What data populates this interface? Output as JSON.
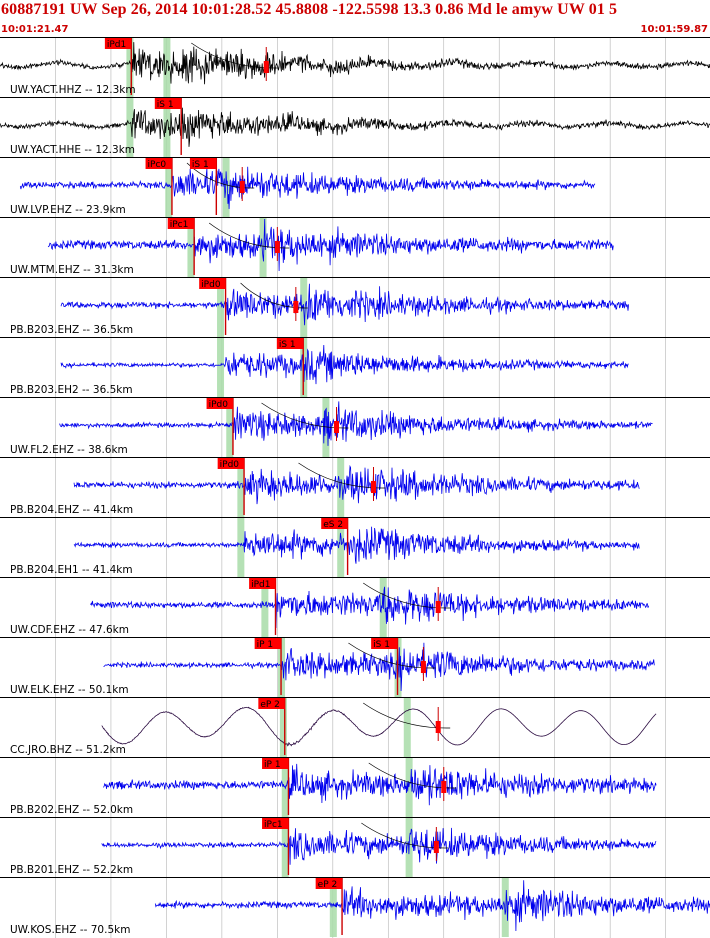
{
  "header": {
    "title": "60887191 UW Sep 26, 2014 10:01:28.52    45.8808 -122.5598 13.3 0.86 Md le amyw UW 01    5",
    "time_start": "10:01:21.47",
    "time_end": "10:01:59.87"
  },
  "colors": {
    "header_text": "#cc0000",
    "trace_velocity": "#0000ee",
    "trace_broadband": "#000000",
    "trace_cc": "#2a0a40",
    "pick_flag": "#ff0000",
    "pick_line": "#cc0000",
    "window_band": "#a8dca8",
    "grid": "#b4b4b4"
  },
  "chart_data": {
    "type": "seismogram",
    "title": "60887191 UW Sep 26, 2014 10:01:28.52    45.8808 -122.5598 13.3 0.86 Md le amyw UW 01    5",
    "time_range": [
      "10:01:21.47",
      "10:01:59.87"
    ],
    "time_range_seconds": [
      0,
      38.4
    ],
    "grid": true,
    "traces": [
      {
        "label": "UW.YACT.HHZ -- 12.3km",
        "color": "broadband",
        "start": 0.0,
        "end": 38.4,
        "p": 7.1,
        "s": 9.8,
        "picks": [
          {
            "label": "iPd1",
            "t": 7.1,
            "type": "P"
          }
        ],
        "windows": [
          7.0,
          9.0
        ],
        "coda": [
          14.4
        ],
        "noise": 0.12,
        "amp": 1.0
      },
      {
        "label": "UW.YACT.HHE -- 12.3km",
        "color": "broadband",
        "start": 0.0,
        "end": 38.4,
        "p": 7.1,
        "s": 9.8,
        "picks": [
          {
            "label": "iS 1",
            "t": 9.8,
            "type": "S"
          }
        ],
        "windows": [
          7.0,
          9.0
        ],
        "coda": [],
        "noise": 0.12,
        "amp": 0.95
      },
      {
        "label": "UW.LVP.EHZ -- 23.9km",
        "color": "velocity",
        "start": 1.1,
        "end": 32.2,
        "p": 9.3,
        "s": 11.7,
        "picks": [
          {
            "label": "iPc0",
            "t": 9.3,
            "type": "P"
          },
          {
            "label": "iS 1",
            "t": 11.7,
            "type": "S"
          }
        ],
        "windows": [
          9.1,
          12.2
        ],
        "coda": [
          13.1
        ],
        "noise": 0.16,
        "amp": 1.0
      },
      {
        "label": "UW.MTM.EHZ -- 31.3km",
        "color": "velocity",
        "start": 2.6,
        "end": 33.2,
        "p": 10.5,
        "s": 14.2,
        "picks": [
          {
            "label": "iPc1",
            "t": 10.5,
            "type": "P"
          }
        ],
        "windows": [
          10.3,
          14.2
        ],
        "coda": [
          15.0
        ],
        "noise": 0.22,
        "amp": 1.0
      },
      {
        "label": "PB.B203.EHZ -- 36.5km",
        "color": "velocity",
        "start": 3.3,
        "end": 34.0,
        "p": 12.2,
        "s": 16.4,
        "picks": [
          {
            "label": "iPd0",
            "t": 12.2,
            "type": "P"
          }
        ],
        "windows": [
          11.9,
          16.4
        ],
        "coda": [
          16.0
        ],
        "noise": 0.16,
        "amp": 1.0
      },
      {
        "label": "PB.B203.EH2 -- 36.5km",
        "color": "velocity",
        "start": 3.3,
        "end": 34.0,
        "p": 12.2,
        "s": 16.4,
        "picks": [
          {
            "label": "iS 1",
            "t": 16.4,
            "type": "S"
          }
        ],
        "windows": [
          11.9,
          16.4
        ],
        "coda": [],
        "noise": 0.12,
        "amp": 0.9
      },
      {
        "label": "UW.FL2.EHZ -- 38.6km",
        "color": "velocity",
        "start": 3.2,
        "end": 35.3,
        "p": 12.6,
        "s": 17.5,
        "picks": [
          {
            "label": "iPd0",
            "t": 12.6,
            "type": "P"
          }
        ],
        "windows": [
          12.4,
          17.6
        ],
        "coda": [
          18.2
        ],
        "noise": 0.12,
        "amp": 1.0
      },
      {
        "label": "PB.B204.EHZ -- 41.4km",
        "color": "velocity",
        "start": 4.0,
        "end": 34.6,
        "p": 13.2,
        "s": 18.8,
        "picks": [
          {
            "label": "iPd0",
            "t": 13.2,
            "type": "P"
          }
        ],
        "windows": [
          13.0,
          18.4
        ],
        "coda": [
          20.2
        ],
        "noise": 0.16,
        "amp": 1.0
      },
      {
        "label": "PB.B204.EH1 -- 41.4km",
        "color": "velocity",
        "start": 4.0,
        "end": 34.6,
        "p": 13.2,
        "s": 18.8,
        "picks": [
          {
            "label": "eS 2",
            "t": 18.8,
            "type": "S"
          }
        ],
        "windows": [
          13.0,
          18.4
        ],
        "coda": [],
        "noise": 0.12,
        "amp": 1.0
      },
      {
        "label": "UW.CDF.EHZ -- 47.6km",
        "color": "velocity",
        "start": 4.9,
        "end": 35.1,
        "p": 14.9,
        "s": 20.7,
        "picks": [
          {
            "label": "iPd1",
            "t": 14.9,
            "type": "P"
          }
        ],
        "windows": [
          14.3,
          20.7
        ],
        "coda": [
          23.7
        ],
        "noise": 0.16,
        "amp": 1.0
      },
      {
        "label": "UW.ELK.EHZ -- 50.1km",
        "color": "velocity",
        "start": 5.6,
        "end": 35.4,
        "p": 15.2,
        "s": 21.5,
        "picks": [
          {
            "label": "iP 1",
            "t": 15.2,
            "type": "P"
          },
          {
            "label": "iS 1",
            "t": 21.5,
            "type": "S"
          }
        ],
        "windows": [
          15.2,
          21.5
        ],
        "coda": [
          22.9
        ],
        "noise": 0.12,
        "amp": 1.0
      },
      {
        "label": "CC.JRO.BHZ -- 51.2km",
        "color": "cc",
        "start": 5.5,
        "end": 35.5,
        "p": 15.4,
        "s": 22.0,
        "picks": [
          {
            "label": "eP 2",
            "t": 15.4,
            "type": "P"
          }
        ],
        "windows": [
          15.3,
          22.0
        ],
        "coda": [
          23.7
        ],
        "noise": 0.12,
        "amp": 1.0
      },
      {
        "label": "PB.B202.EHZ -- 52.0km",
        "color": "velocity",
        "start": 5.6,
        "end": 35.5,
        "p": 15.6,
        "s": 22.1,
        "picks": [
          {
            "label": "iP 1",
            "t": 15.6,
            "type": "P"
          }
        ],
        "windows": [
          15.4,
          22.1
        ],
        "coda": [
          24.0
        ],
        "noise": 0.22,
        "amp": 1.0
      },
      {
        "label": "PB.B201.EHZ -- 52.2km",
        "color": "velocity",
        "start": 5.5,
        "end": 35.5,
        "p": 15.6,
        "s": 22.1,
        "picks": [
          {
            "label": "iPc1",
            "t": 15.6,
            "type": "P"
          }
        ],
        "windows": [
          15.4,
          22.1
        ],
        "coda": [
          23.6
        ],
        "noise": 0.12,
        "amp": 1.0
      },
      {
        "label": "UW.KOS.EHZ -- 70.5km",
        "color": "velocity",
        "start": 8.4,
        "end": 38.4,
        "p": 18.5,
        "s": 27.3,
        "picks": [
          {
            "label": "eP 2",
            "t": 18.5,
            "type": "P"
          }
        ],
        "windows": [
          18.0,
          27.3
        ],
        "coda": [],
        "noise": 0.16,
        "amp": 1.0
      }
    ]
  }
}
